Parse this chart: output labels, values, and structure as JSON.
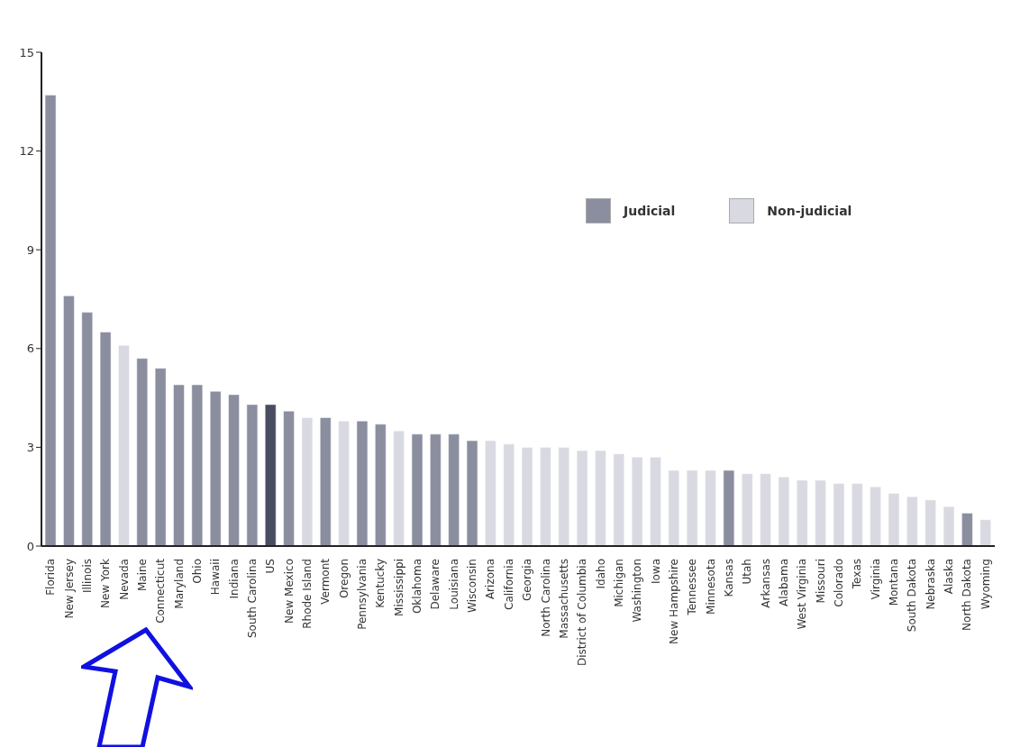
{
  "chart_data": {
    "type": "bar",
    "stacked": true,
    "legend": "top right",
    "categories": [
      "Florida",
      "New Jersey",
      "Illinois",
      "New York",
      "Nevada",
      "Maine",
      "Connecticut",
      "Maryland",
      "Ohio",
      "Hawaii",
      "Indiana",
      "South Carolina",
      "US",
      "New Mexico",
      "Rhode Island",
      "Vermont",
      "Oregon",
      "Pennsylvania",
      "Kentucky",
      "Mississippi",
      "Oklahoma",
      "Delaware",
      "Louisiana",
      "Wisconsin",
      "Arizona",
      "California",
      "Georgia",
      "North Carolina",
      "Massachusetts",
      "District of Columbia",
      "Idaho",
      "Michigan",
      "Washington",
      "Iowa",
      "New Hampshire",
      "Tennessee",
      "Minnesota",
      "Kansas",
      "Utah",
      "Arkansas",
      "Alabama",
      "West Virginia",
      "Missouri",
      "Colorado",
      "Texas",
      "Virginia",
      "Montana",
      "South Dakota",
      "Nebraska",
      "Alaska",
      "North Dakota",
      "Wyoming"
    ],
    "series": [
      {
        "name": "Judicial",
        "color": "#8b8e9f",
        "values": [
          13.7,
          7.6,
          7.1,
          6.5,
          null,
          5.7,
          5.4,
          4.9,
          4.9,
          4.7,
          4.6,
          4.3,
          null,
          4.1,
          null,
          3.9,
          null,
          3.8,
          3.7,
          null,
          3.4,
          3.4,
          3.4,
          3.2,
          null,
          null,
          null,
          null,
          null,
          null,
          null,
          null,
          null,
          null,
          null,
          null,
          null,
          2.3,
          null,
          null,
          null,
          null,
          null,
          null,
          null,
          null,
          null,
          null,
          null,
          null,
          1.0,
          null
        ]
      },
      {
        "name": "Non-judicial",
        "color": "#d9dae1",
        "values": [
          null,
          null,
          null,
          null,
          6.1,
          null,
          null,
          null,
          null,
          null,
          null,
          null,
          null,
          null,
          3.9,
          null,
          3.8,
          null,
          null,
          3.5,
          null,
          null,
          null,
          null,
          3.2,
          3.1,
          3.0,
          3.0,
          3.0,
          2.9,
          2.9,
          2.8,
          2.7,
          2.7,
          2.3,
          2.3,
          2.3,
          null,
          2.2,
          2.2,
          2.1,
          2.0,
          2.0,
          1.9,
          1.9,
          1.8,
          1.6,
          1.5,
          1.4,
          1.2,
          null,
          0.8
        ]
      },
      {
        "color": "#4a4d61",
        "values": [
          null,
          null,
          null,
          null,
          null,
          null,
          null,
          null,
          null,
          null,
          null,
          null,
          4.3,
          null,
          null,
          null,
          null,
          null,
          null,
          null,
          null,
          null,
          null,
          null,
          null,
          null,
          null,
          null,
          null,
          null,
          null,
          null,
          null,
          null,
          null,
          null,
          null,
          null,
          null,
          null,
          null,
          null,
          null,
          null,
          null,
          null,
          null,
          null,
          null,
          null,
          null,
          null
        ]
      }
    ],
    "ylim": [
      0,
      15
    ],
    "yticks": [
      0,
      3,
      6,
      9,
      12,
      15
    ],
    "grid": false
  }
}
